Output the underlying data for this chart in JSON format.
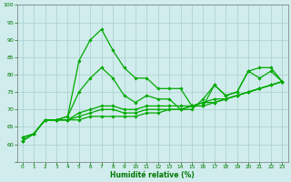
{
  "title": "",
  "xlabel": "Humidité relative (%)",
  "ylabel": "",
  "background_color": "#d0ecec",
  "grid_color": "#aacece",
  "line_color": "#00aa00",
  "x_values": [
    0,
    1,
    2,
    3,
    4,
    5,
    6,
    7,
    8,
    9,
    10,
    11,
    12,
    13,
    14,
    15,
    16,
    17,
    18,
    19,
    20,
    21,
    22,
    23
  ],
  "series1": [
    61,
    63,
    67,
    67,
    68,
    84,
    90,
    93,
    87,
    82,
    79,
    79,
    76,
    76,
    76,
    71,
    71,
    77,
    74,
    75,
    81,
    82,
    82,
    78
  ],
  "series2": [
    61,
    63,
    67,
    67,
    68,
    75,
    79,
    82,
    79,
    74,
    72,
    74,
    73,
    73,
    70,
    70,
    73,
    77,
    74,
    75,
    81,
    79,
    81,
    78
  ],
  "series3": [
    62,
    63,
    67,
    67,
    67,
    69,
    70,
    71,
    71,
    70,
    70,
    71,
    71,
    71,
    71,
    71,
    72,
    73,
    73,
    74,
    75,
    76,
    77,
    78
  ],
  "series4": [
    62,
    63,
    67,
    67,
    67,
    68,
    69,
    70,
    70,
    69,
    69,
    70,
    70,
    70,
    70,
    71,
    72,
    72,
    73,
    74,
    75,
    76,
    77,
    78
  ],
  "series5": [
    61,
    63,
    67,
    67,
    67,
    67,
    68,
    68,
    68,
    68,
    68,
    69,
    69,
    70,
    70,
    71,
    71,
    72,
    73,
    74,
    75,
    76,
    77,
    78
  ],
  "ylim": [
    55,
    100
  ],
  "yticks": [
    55,
    60,
    65,
    70,
    75,
    80,
    85,
    90,
    95,
    100
  ],
  "xlim": [
    -0.5,
    23.5
  ],
  "xticks": [
    0,
    1,
    2,
    3,
    4,
    5,
    6,
    7,
    8,
    9,
    10,
    11,
    12,
    13,
    14,
    15,
    16,
    17,
    18,
    19,
    20,
    21,
    22,
    23
  ]
}
